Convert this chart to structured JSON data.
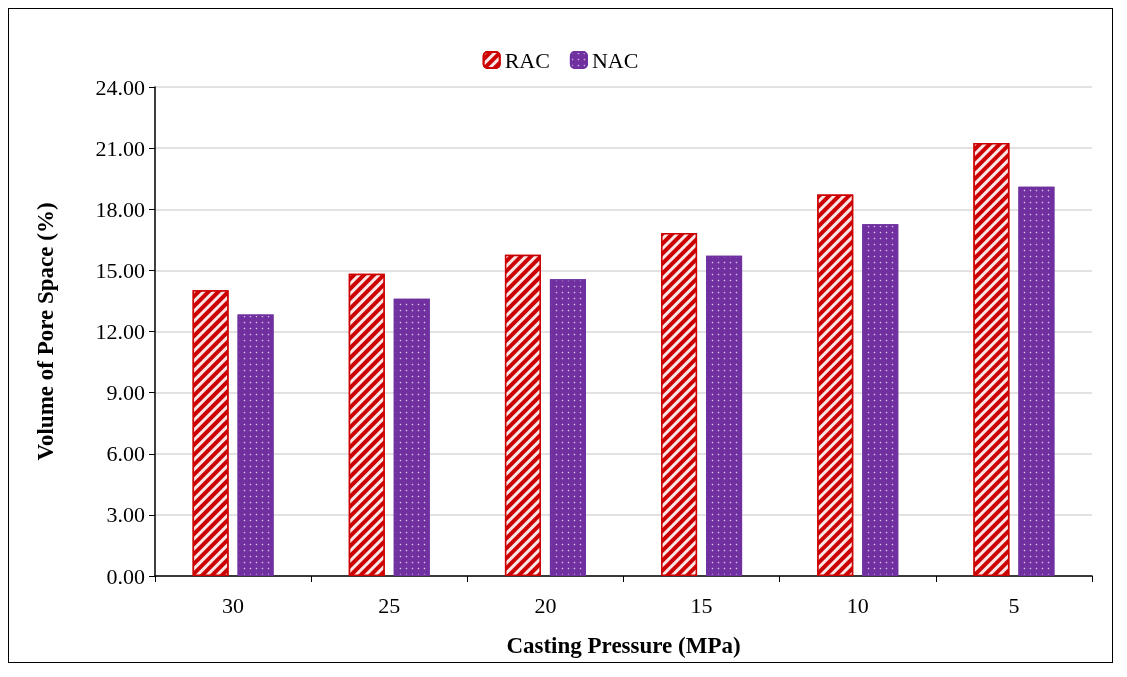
{
  "chart_data": {
    "type": "bar",
    "xlabel": "Casting Pressure (MPa)",
    "ylabel": "Volume of Pore Space (%)",
    "categories": [
      "30",
      "25",
      "20",
      "15",
      "10",
      "5"
    ],
    "series": [
      {
        "name": "RAC",
        "color": "#cc0000",
        "values": [
          14.02,
          14.83,
          15.77,
          16.83,
          18.73,
          21.25
        ]
      },
      {
        "name": "NAC",
        "color": "#7030a0",
        "values": [
          12.84,
          13.61,
          14.57,
          15.72,
          17.26,
          19.1
        ]
      }
    ],
    "ylim": [
      0,
      24
    ],
    "yticks": [
      {
        "value": 0,
        "label": "0.00"
      },
      {
        "value": 3,
        "label": "3.00"
      },
      {
        "value": 6,
        "label": "6.00"
      },
      {
        "value": 9,
        "label": "9.00"
      },
      {
        "value": 12,
        "label": "12.00"
      },
      {
        "value": 15,
        "label": "15.00"
      },
      {
        "value": 18,
        "label": "18.00"
      },
      {
        "value": 21,
        "label": "21.00"
      },
      {
        "value": 24,
        "label": "24.00"
      }
    ],
    "grid": "y",
    "legend": "top"
  }
}
